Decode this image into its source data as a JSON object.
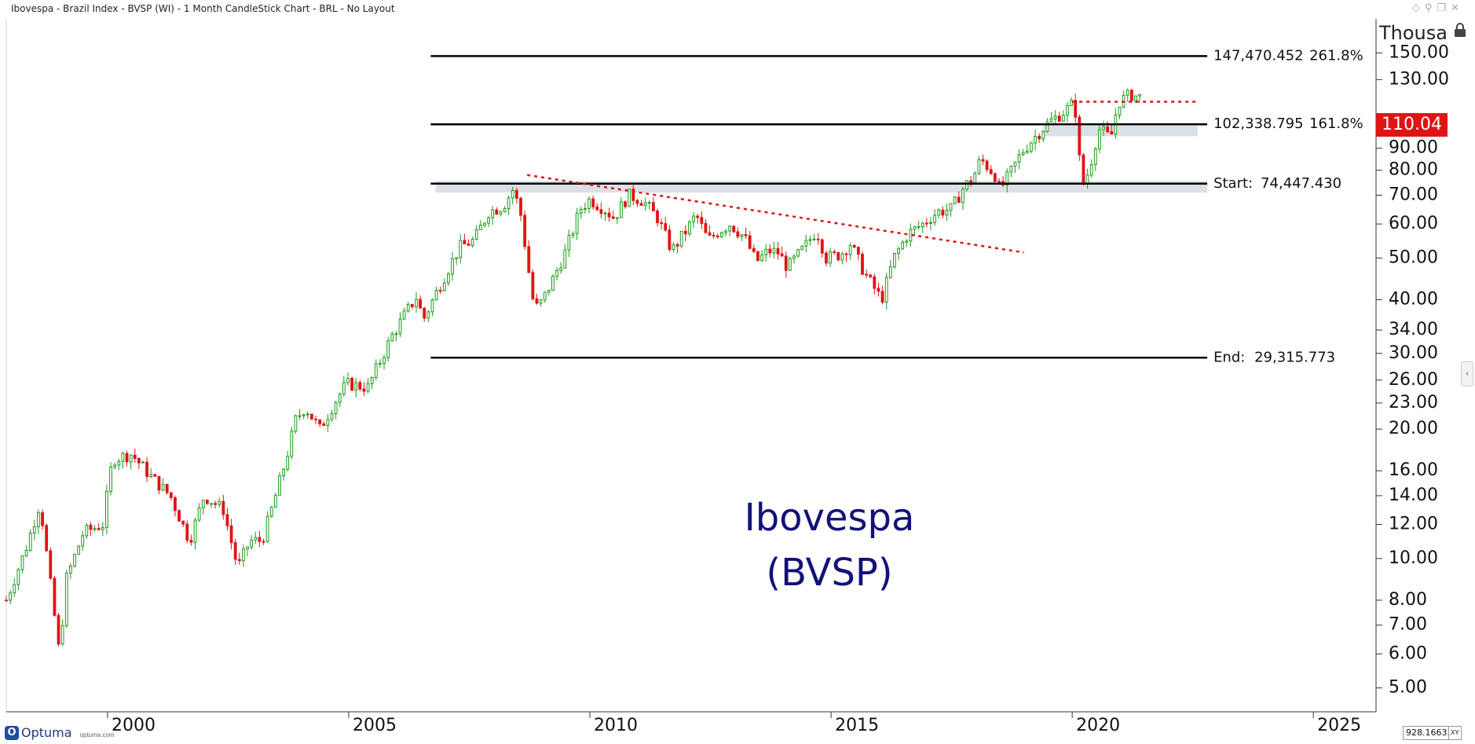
{
  "window": {
    "title": "Ibovespa - Brazil Index - BVSP (WI) - 1 Month CandleStick Chart - BRL - No Layout"
  },
  "icons": {
    "window_controls": [
      "diamond-icon",
      "pin-icon",
      "restore-icon",
      "close-icon"
    ],
    "lock": "lock-icon",
    "side_panel_toggle": "chevron-left-icon"
  },
  "branding": {
    "logo": "Optuma",
    "url": "optuma.com"
  },
  "status": {
    "cursor_value": "928.16633",
    "xy_label": "XY"
  },
  "chart_data": {
    "type": "candlestick",
    "title": "Ibovespa\n(BVSP)",
    "title_lines": [
      "Ibovespa",
      "(BVSP)"
    ],
    "interval": "1 Month",
    "currency": "BRL",
    "y_unit": "Thousa",
    "y_scale": "log",
    "ylim": [
      4.4,
      180
    ],
    "xlim": [
      1997.9,
      2026.3
    ],
    "x_ticks": [
      2000,
      2005,
      2010,
      2015,
      2020,
      2025
    ],
    "x_tick_labels": [
      "2000",
      "2005",
      "2010",
      "2015",
      "2020",
      "2025"
    ],
    "y_ticks": [
      5,
      6,
      7,
      8,
      10,
      12,
      14,
      16,
      20,
      23,
      26,
      30,
      34,
      40,
      50,
      60,
      70,
      80,
      90,
      130,
      150
    ],
    "y_tick_labels": [
      "5.00",
      "6.00",
      "7.00",
      "8.00",
      "10.00",
      "12.00",
      "14.00",
      "16.00",
      "20.00",
      "23.00",
      "26.00",
      "30.00",
      "34.00",
      "40.00",
      "50.00",
      "60.00",
      "70.00",
      "80.00",
      "90.00",
      "130.00",
      "150.00"
    ],
    "last_price": {
      "value": 110.04,
      "label": "110.04",
      "color": "#e01414"
    },
    "colors": {
      "up": "#1a9c1a",
      "down": "#e01414",
      "fib": "#000000",
      "trend": "#e01414",
      "zone": "#d5dae2",
      "title": "#12127a"
    },
    "anchors": [
      [
        1997.9,
        8.0
      ],
      [
        1998.3,
        10.5
      ],
      [
        1998.6,
        13.5
      ],
      [
        1999.0,
        6.0
      ],
      [
        1999.15,
        9.0
      ],
      [
        1999.5,
        11.5
      ],
      [
        1999.9,
        12.0
      ],
      [
        2000.1,
        17.0
      ],
      [
        2000.5,
        17.5
      ],
      [
        2000.9,
        15.5
      ],
      [
        2001.3,
        14.0
      ],
      [
        2001.7,
        11.0
      ],
      [
        2002.0,
        14.0
      ],
      [
        2002.4,
        13.0
      ],
      [
        2002.7,
        9.5
      ],
      [
        2002.95,
        11.0
      ],
      [
        2003.2,
        11.0
      ],
      [
        2003.4,
        13.0
      ],
      [
        2003.7,
        17.0
      ],
      [
        2003.9,
        21.0
      ],
      [
        2004.1,
        22.5
      ],
      [
        2004.4,
        20.0
      ],
      [
        2004.7,
        23.0
      ],
      [
        2004.95,
        25.5
      ],
      [
        2005.4,
        25.0
      ],
      [
        2005.6,
        28.0
      ],
      [
        2005.9,
        33.0
      ],
      [
        2006.2,
        37.5
      ],
      [
        2006.4,
        40.5
      ],
      [
        2006.55,
        36.0
      ],
      [
        2006.9,
        43.5
      ],
      [
        2007.3,
        53.0
      ],
      [
        2007.6,
        55.0
      ],
      [
        2007.9,
        64.0
      ],
      [
        2008.2,
        66.0
      ],
      [
        2008.4,
        72.0
      ],
      [
        2008.55,
        65.0
      ],
      [
        2008.75,
        45.0
      ],
      [
        2008.85,
        38.0
      ],
      [
        2009.0,
        39.5
      ],
      [
        2009.25,
        45.0
      ],
      [
        2009.5,
        52.0
      ],
      [
        2009.8,
        65.0
      ],
      [
        2010.0,
        68.5
      ],
      [
        2010.3,
        65.0
      ],
      [
        2010.5,
        62.0
      ],
      [
        2010.8,
        70.0
      ],
      [
        2011.1,
        68.0
      ],
      [
        2011.4,
        62.0
      ],
      [
        2011.7,
        52.0
      ],
      [
        2012.0,
        58.0
      ],
      [
        2012.2,
        63.0
      ],
      [
        2012.45,
        55.0
      ],
      [
        2012.7,
        58.0
      ],
      [
        2012.9,
        60.0
      ],
      [
        2013.2,
        56.0
      ],
      [
        2013.45,
        49.0
      ],
      [
        2013.7,
        52.0
      ],
      [
        2013.9,
        51.5
      ],
      [
        2014.1,
        47.5
      ],
      [
        2014.45,
        53.0
      ],
      [
        2014.7,
        58.0
      ],
      [
        2014.9,
        50.0
      ],
      [
        2015.2,
        51.0
      ],
      [
        2015.4,
        54.0
      ],
      [
        2015.7,
        46.0
      ],
      [
        2016.05,
        40.0
      ],
      [
        2016.3,
        50.0
      ],
      [
        2016.6,
        57.0
      ],
      [
        2016.9,
        60.0
      ],
      [
        2017.2,
        64.0
      ],
      [
        2017.5,
        65.0
      ],
      [
        2017.75,
        73.0
      ],
      [
        2017.95,
        77.0
      ],
      [
        2018.1,
        85.0
      ],
      [
        2018.4,
        78.0
      ],
      [
        2018.5,
        72.0
      ],
      [
        2018.75,
        80.0
      ],
      [
        2018.95,
        88.0
      ],
      [
        2019.2,
        95.0
      ],
      [
        2019.5,
        103.0
      ],
      [
        2019.85,
        110.0
      ],
      [
        2020.05,
        115.0
      ],
      [
        2020.2,
        73.0
      ],
      [
        2020.35,
        80.0
      ],
      [
        2020.55,
        100.0
      ],
      [
        2020.8,
        95.0
      ],
      [
        2020.95,
        115.0
      ],
      [
        2021.2,
        120.0
      ],
      [
        2021.45,
        118.0
      ]
    ],
    "fib_levels": [
      {
        "value": 147470.452,
        "label": "147,470.452",
        "pct": "261.8%"
      },
      {
        "value": 102338.795,
        "label": "102,338.795",
        "pct": "161.8%"
      }
    ],
    "start_level": {
      "value": 74447.43,
      "label": "Start:",
      "value_label": "74,447.430"
    },
    "end_level": {
      "value": 29315.773,
      "label": "End:",
      "value_label": "29,315.773"
    },
    "fib_x_range": [
      2006.7,
      2022.8
    ],
    "trendlines": [
      {
        "type": "downtrend",
        "from": [
          2008.7,
          78.0
        ],
        "to": [
          2019.0,
          51.5
        ]
      },
      {
        "type": "resistance",
        "from": [
          2020.0,
          115.5
        ],
        "to": [
          2022.6,
          115.5
        ]
      }
    ],
    "zones": [
      {
        "x": [
          2006.8,
          2022.8
        ],
        "y": [
          71.0,
          75.5
        ]
      },
      {
        "x": [
          2019.4,
          2022.6
        ],
        "y": [
          96.0,
          101.5
        ]
      }
    ]
  }
}
